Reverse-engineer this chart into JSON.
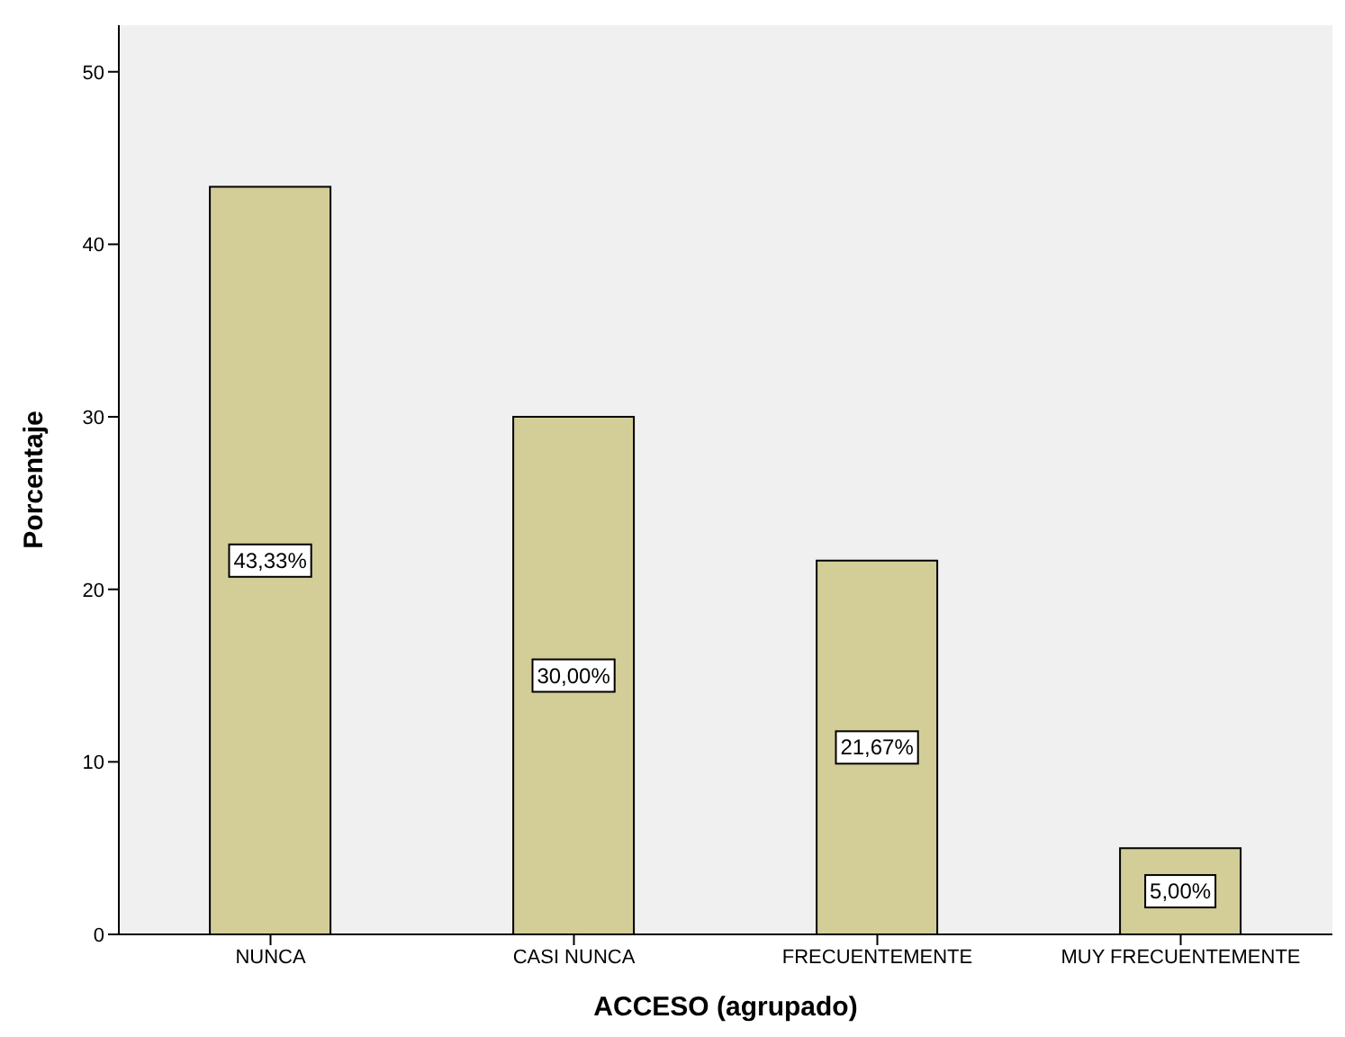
{
  "chart_data": {
    "type": "bar",
    "xlabel": "ACCESO (agrupado)",
    "ylabel": "Porcentaje",
    "categories": [
      "NUNCA",
      "CASI NUNCA",
      "FRECUENTEMENTE",
      "MUY FRECUENTEMENTE"
    ],
    "values": [
      43.33,
      30.0,
      21.67,
      5.0
    ],
    "value_labels": [
      "43,33%",
      "30,00%",
      "21,67%",
      "5,00%"
    ],
    "color": "#d3ce97",
    "ylim": [
      0,
      52.7
    ],
    "yticks": [
      0,
      10,
      20,
      30,
      40,
      50
    ],
    "grid": false,
    "legend": false
  }
}
